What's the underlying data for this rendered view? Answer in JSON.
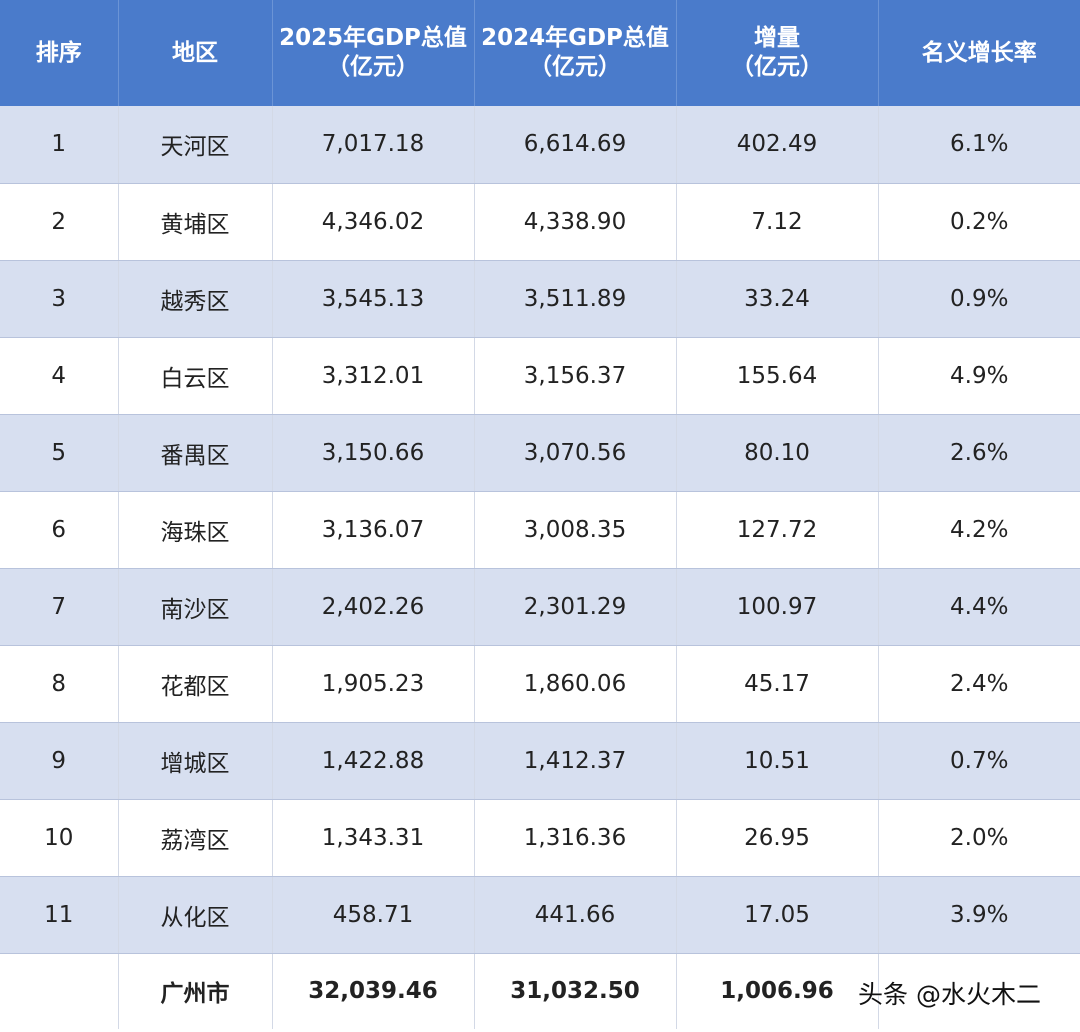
{
  "table": {
    "headers": [
      {
        "line1": "排序",
        "line2": ""
      },
      {
        "line1": "地区",
        "line2": ""
      },
      {
        "line1": "2025年GDP总值",
        "line2": "（亿元）"
      },
      {
        "line1": "2024年GDP总值",
        "line2": "（亿元）"
      },
      {
        "line1": "增量",
        "line2": "（亿元）"
      },
      {
        "line1": "名义增长率",
        "line2": ""
      }
    ],
    "rows": [
      {
        "rank": "1",
        "region": "天河区",
        "gdp2025": "7,017.18",
        "gdp2024": "6,614.69",
        "increase": "402.49",
        "growth": "6.1%"
      },
      {
        "rank": "2",
        "region": "黄埔区",
        "gdp2025": "4,346.02",
        "gdp2024": "4,338.90",
        "increase": "7.12",
        "growth": "0.2%"
      },
      {
        "rank": "3",
        "region": "越秀区",
        "gdp2025": "3,545.13",
        "gdp2024": "3,511.89",
        "increase": "33.24",
        "growth": "0.9%"
      },
      {
        "rank": "4",
        "region": "白云区",
        "gdp2025": "3,312.01",
        "gdp2024": "3,156.37",
        "increase": "155.64",
        "growth": "4.9%"
      },
      {
        "rank": "5",
        "region": "番禺区",
        "gdp2025": "3,150.66",
        "gdp2024": "3,070.56",
        "increase": "80.10",
        "growth": "2.6%"
      },
      {
        "rank": "6",
        "region": "海珠区",
        "gdp2025": "3,136.07",
        "gdp2024": "3,008.35",
        "increase": "127.72",
        "growth": "4.2%"
      },
      {
        "rank": "7",
        "region": "南沙区",
        "gdp2025": "2,402.26",
        "gdp2024": "2,301.29",
        "increase": "100.97",
        "growth": "4.4%"
      },
      {
        "rank": "8",
        "region": "花都区",
        "gdp2025": "1,905.23",
        "gdp2024": "1,860.06",
        "increase": "45.17",
        "growth": "2.4%"
      },
      {
        "rank": "9",
        "region": "增城区",
        "gdp2025": "1,422.88",
        "gdp2024": "1,412.37",
        "increase": "10.51",
        "growth": "0.7%"
      },
      {
        "rank": "10",
        "region": "荔湾区",
        "gdp2025": "1,343.31",
        "gdp2024": "1,316.36",
        "increase": "26.95",
        "growth": "2.0%"
      },
      {
        "rank": "11",
        "region": "从化区",
        "gdp2025": "458.71",
        "gdp2024": "441.66",
        "increase": "17.05",
        "growth": "3.9%"
      }
    ],
    "total": {
      "rank": "",
      "region": "广州市",
      "gdp2025": "32,039.46",
      "gdp2024": "31,032.50",
      "increase": "1,006.96",
      "growth": ""
    }
  },
  "watermark": "头条 @水火木二",
  "colors": {
    "header_bg": "#4a7bcb",
    "row_shade": "#d7dff0",
    "row_plain": "#ffffff",
    "header_text": "#ffffff"
  }
}
